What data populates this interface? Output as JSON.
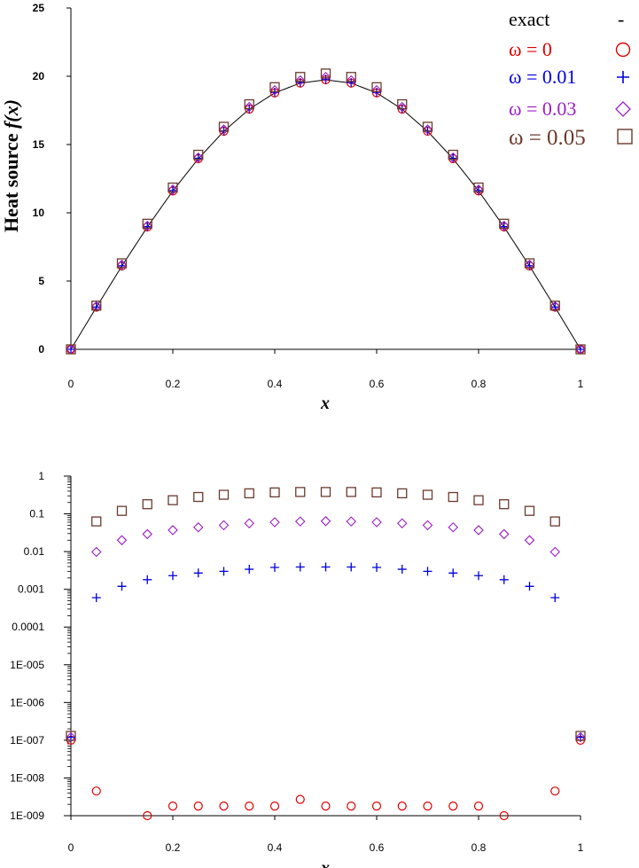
{
  "chart_data": [
    {
      "type": "scatter",
      "scale": "linear",
      "xlabel": "x",
      "ylabel_main": "Heat source ",
      "ylabel_italic": "f(x)",
      "xlim": [
        0,
        1
      ],
      "ylim": [
        0,
        25
      ],
      "xticks": [
        "0",
        "0.2",
        "0.4",
        "0.6",
        "0.8",
        "1"
      ],
      "yticks": [
        "0",
        "5",
        "10",
        "15",
        "20",
        "25"
      ],
      "legend": [
        {
          "label": "exact",
          "symbol": "-",
          "color": "#000000"
        },
        {
          "label": "ω = 0",
          "symbol": "○",
          "color": "#e00000"
        },
        {
          "label": "ω = 0.01",
          "symbol": "+",
          "color": "#0000e0"
        },
        {
          "label": "ω = 0.03",
          "symbol": "◇",
          "color": "#9b1fc4"
        },
        {
          "label": "ω = 0.05",
          "symbol": "□",
          "color": "#6b3a2e"
        }
      ],
      "x": [
        0,
        0.05,
        0.1,
        0.15,
        0.2,
        0.25,
        0.3,
        0.35,
        0.4,
        0.45,
        0.5,
        0.55,
        0.6,
        0.65,
        0.7,
        0.75,
        0.8,
        0.85,
        0.9,
        0.95,
        1
      ],
      "series": [
        {
          "name": "exact",
          "marker": "line",
          "color": "#000000",
          "values": [
            0,
            3.08,
            6.1,
            8.96,
            11.6,
            13.96,
            15.97,
            17.59,
            18.78,
            19.5,
            19.74,
            19.5,
            18.78,
            17.59,
            15.97,
            13.96,
            11.6,
            8.96,
            6.1,
            3.08,
            0
          ]
        },
        {
          "name": "ω = 0",
          "marker": "circle",
          "color": "#e00000",
          "values": [
            0,
            3.08,
            6.1,
            8.96,
            11.6,
            13.96,
            15.97,
            17.59,
            18.78,
            19.5,
            19.74,
            19.5,
            18.78,
            17.59,
            15.97,
            13.96,
            11.6,
            8.96,
            6.1,
            3.08,
            0
          ]
        },
        {
          "name": "ω = 0.01",
          "marker": "plus",
          "color": "#0000e0",
          "values": [
            0,
            3.1,
            6.12,
            8.98,
            11.63,
            13.99,
            16.0,
            17.62,
            18.82,
            19.54,
            19.78,
            19.54,
            18.82,
            17.62,
            16.0,
            13.99,
            11.63,
            8.98,
            6.12,
            3.1,
            0
          ]
        },
        {
          "name": "ω = 0.03",
          "marker": "diamond",
          "color": "#9b1fc4",
          "values": [
            0,
            3.15,
            6.2,
            9.05,
            11.7,
            14.05,
            16.1,
            17.75,
            18.98,
            19.7,
            19.95,
            19.7,
            18.98,
            17.75,
            16.1,
            14.05,
            11.7,
            9.05,
            6.2,
            3.15,
            0
          ]
        },
        {
          "name": "ω = 0.05",
          "marker": "square",
          "color": "#6b3a2e",
          "values": [
            0,
            3.2,
            6.3,
            9.2,
            11.85,
            14.25,
            16.3,
            17.95,
            19.2,
            19.95,
            20.2,
            19.95,
            19.2,
            17.95,
            16.3,
            14.25,
            11.85,
            9.2,
            6.3,
            3.2,
            0
          ]
        }
      ]
    },
    {
      "type": "scatter",
      "scale": "log",
      "xlabel": "x",
      "xlim": [
        0,
        1
      ],
      "ylim": [
        1e-09,
        1
      ],
      "xticks": [
        "0",
        "0.2",
        "0.4",
        "0.6",
        "0.8",
        "1"
      ],
      "yticks": [
        "1E-009",
        "1E-008",
        "1E-007",
        "1E-006",
        "1E-005",
        "0.0001",
        "0.001",
        "0.01",
        "0.1",
        "1"
      ],
      "x": [
        0,
        0.05,
        0.1,
        0.15,
        0.2,
        0.25,
        0.3,
        0.35,
        0.4,
        0.45,
        0.5,
        0.55,
        0.6,
        0.65,
        0.7,
        0.75,
        0.8,
        0.85,
        0.9,
        0.95,
        1
      ],
      "series": [
        {
          "name": "ω = 0",
          "marker": "circle",
          "color": "#e00000",
          "values": [
            1e-07,
            4.5e-09,
            null,
            1e-09,
            1.8e-09,
            1.8e-09,
            1.8e-09,
            1.8e-09,
            1.8e-09,
            2.7e-09,
            1.8e-09,
            1.8e-09,
            1.8e-09,
            1.8e-09,
            1.8e-09,
            1.8e-09,
            1.8e-09,
            1e-09,
            null,
            4.5e-09,
            1e-07
          ]
        },
        {
          "name": "ω = 0.01",
          "marker": "plus",
          "color": "#0000e0",
          "values": [
            1.2e-07,
            0.0006,
            0.0012,
            0.0018,
            0.0023,
            0.0027,
            0.003,
            0.0034,
            0.0038,
            0.0039,
            0.0039,
            0.0039,
            0.0038,
            0.0034,
            0.003,
            0.0027,
            0.0023,
            0.0018,
            0.0012,
            0.0006,
            1.2e-07
          ]
        },
        {
          "name": "ω = 0.03",
          "marker": "diamond",
          "color": "#9b1fc4",
          "values": [
            1.2e-07,
            0.0098,
            0.02,
            0.029,
            0.037,
            0.044,
            0.05,
            0.056,
            0.06,
            0.063,
            0.064,
            0.063,
            0.06,
            0.056,
            0.05,
            0.044,
            0.037,
            0.029,
            0.02,
            0.0098,
            1.2e-07
          ]
        },
        {
          "name": "ω = 0.05",
          "marker": "square",
          "color": "#6b3a2e",
          "values": [
            1.3e-07,
            0.063,
            0.12,
            0.18,
            0.23,
            0.28,
            0.32,
            0.35,
            0.37,
            0.38,
            0.38,
            0.38,
            0.37,
            0.35,
            0.32,
            0.28,
            0.23,
            0.18,
            0.12,
            0.063,
            1.3e-07
          ]
        }
      ]
    }
  ]
}
